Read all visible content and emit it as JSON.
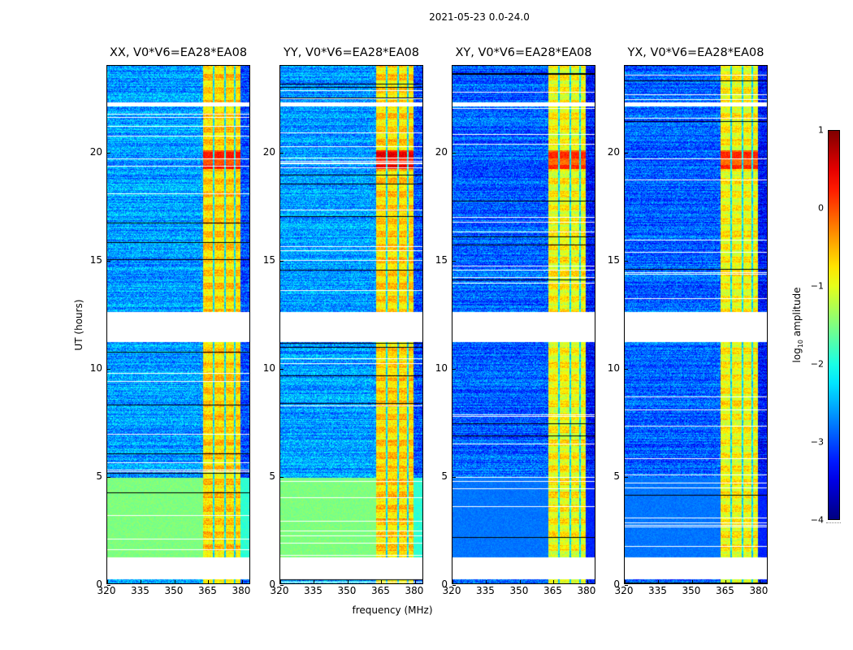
{
  "chart_data": {
    "type": "heatmap",
    "title": "2021-05-23 0.0-24.0",
    "xlabel": "frequency (MHz)",
    "ylabel": "UT (hours)",
    "xlim": [
      320,
      384
    ],
    "ylim": [
      0,
      24
    ],
    "xticks": [
      "320",
      "335",
      "350",
      "365",
      "380"
    ],
    "xtick_values": [
      320,
      335,
      350,
      365,
      380
    ],
    "yticks": [
      "0",
      "5",
      "10",
      "15",
      "20"
    ],
    "ytick_values": [
      0,
      5,
      10,
      15,
      20
    ],
    "colorbar": {
      "label_main": "log",
      "label_sub": "10",
      "label_rest": " amplitude",
      "range": [
        -4,
        1
      ],
      "ticks": [
        "1",
        "0",
        "−1",
        "−2",
        "−3",
        "−4"
      ],
      "tick_values": [
        1,
        0,
        -1,
        -2,
        -3,
        -4
      ],
      "colormap": "jet"
    },
    "bright_band_mhz": [
      363,
      380
    ],
    "subband_edges_mhz": [
      363,
      368,
      373,
      377.5,
      380
    ],
    "blank_intervals_hours": [
      [
        0.2,
        1.2
      ],
      [
        11.2,
        12.6
      ],
      [
        22.1,
        22.3
      ]
    ],
    "panels": [
      {
        "name": "XX",
        "title": "XX, V0*V6=EA28*EA08",
        "background_log_amp": -2.6,
        "band_log_amp": -0.5,
        "peak_hours": [
          19.2,
          20.1
        ],
        "peak_log_amp": 0.3,
        "low_hours_bg": [
          1.2,
          4.9
        ],
        "low_hours_bg_log_amp": -1.5
      },
      {
        "name": "YY",
        "title": "YY, V0*V6=EA28*EA08",
        "background_log_amp": -2.6,
        "band_log_amp": -0.5,
        "peak_hours": [
          19.2,
          20.1
        ],
        "peak_log_amp": 0.5,
        "low_hours_bg": [
          1.2,
          4.9
        ],
        "low_hours_bg_log_amp": -1.5
      },
      {
        "name": "XY",
        "title": "XY, V0*V6=EA28*EA08",
        "background_log_amp": -2.9,
        "band_log_amp": -0.7,
        "peak_hours": [
          19.2,
          20.1
        ],
        "peak_log_amp": 0.2,
        "low_hours_bg": [
          1.2,
          4.9
        ],
        "low_hours_bg_log_amp": -2.8
      },
      {
        "name": "YX",
        "title": "YX, V0*V6=EA28*EA08",
        "background_log_amp": -2.9,
        "band_log_amp": -0.7,
        "peak_hours": [
          19.2,
          20.1
        ],
        "peak_log_amp": 0.2,
        "low_hours_bg": [
          1.2,
          4.9
        ],
        "low_hours_bg_log_amp": -2.8
      }
    ]
  }
}
